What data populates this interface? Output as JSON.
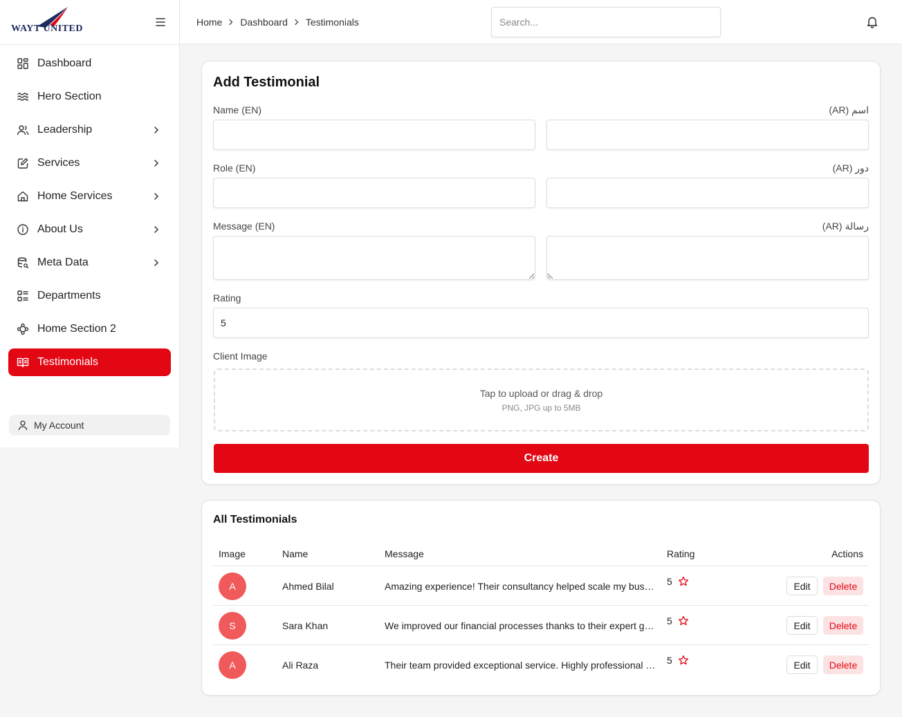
{
  "brand": {
    "name": "WAYT UNITED",
    "accent": "#e30613",
    "logo_color": "#1d2a5c"
  },
  "sidebar": {
    "items": [
      {
        "label": "Dashboard",
        "icon": "dashboard-icon",
        "chevron": false,
        "active": false
      },
      {
        "label": "Hero Section",
        "icon": "waves-icon",
        "chevron": false,
        "active": false
      },
      {
        "label": "Leadership",
        "icon": "users-icon",
        "chevron": true,
        "active": false
      },
      {
        "label": "Services",
        "icon": "edit-doc-icon",
        "chevron": true,
        "active": false
      },
      {
        "label": "Home Services",
        "icon": "home-icon",
        "chevron": true,
        "active": false
      },
      {
        "label": "About Us",
        "icon": "info-icon",
        "chevron": true,
        "active": false
      },
      {
        "label": "Meta Data",
        "icon": "database-search-icon",
        "chevron": true,
        "active": false
      },
      {
        "label": "Departments",
        "icon": "list-grid-icon",
        "chevron": false,
        "active": false
      },
      {
        "label": "Home Section 2",
        "icon": "hierarchy-icon",
        "chevron": false,
        "active": false
      },
      {
        "label": "Testimonials",
        "icon": "book-open-icon",
        "chevron": false,
        "active": true
      }
    ],
    "account_label": "My Account"
  },
  "topbar": {
    "breadcrumb": [
      "Home",
      "Dashboard",
      "Testimonials"
    ],
    "search_placeholder": "Search..."
  },
  "form": {
    "title": "Add Testimonial",
    "name_en_label": "Name (EN)",
    "name_ar_label": "اسم (AR)",
    "role_en_label": "Role (EN)",
    "role_ar_label": "دور (AR)",
    "message_en_label": "Message (EN)",
    "message_ar_label": "رسالة (AR)",
    "rating_label": "Rating",
    "rating_value": "5",
    "image_label": "Client Image",
    "upload_text": "Tap to upload or drag & drop",
    "upload_hint": "PNG, JPG up to 5MB",
    "submit_label": "Create"
  },
  "list": {
    "title": "All Testimonials",
    "columns": [
      "Image",
      "Name",
      "Message",
      "Rating",
      "Actions"
    ],
    "rows": [
      {
        "initial": "A",
        "name": "Ahmed Bilal",
        "message": "Amazing experience! Their consultancy helped scale my business.",
        "rating": "5"
      },
      {
        "initial": "S",
        "name": "Sara Khan",
        "message": "We improved our financial processes thanks to their expert guidance.",
        "rating": "5"
      },
      {
        "initial": "A",
        "name": "Ali Raza",
        "message": "Their team provided exceptional service. Highly professional and reliable.",
        "rating": "5"
      }
    ],
    "edit_label": "Edit",
    "delete_label": "Delete"
  }
}
